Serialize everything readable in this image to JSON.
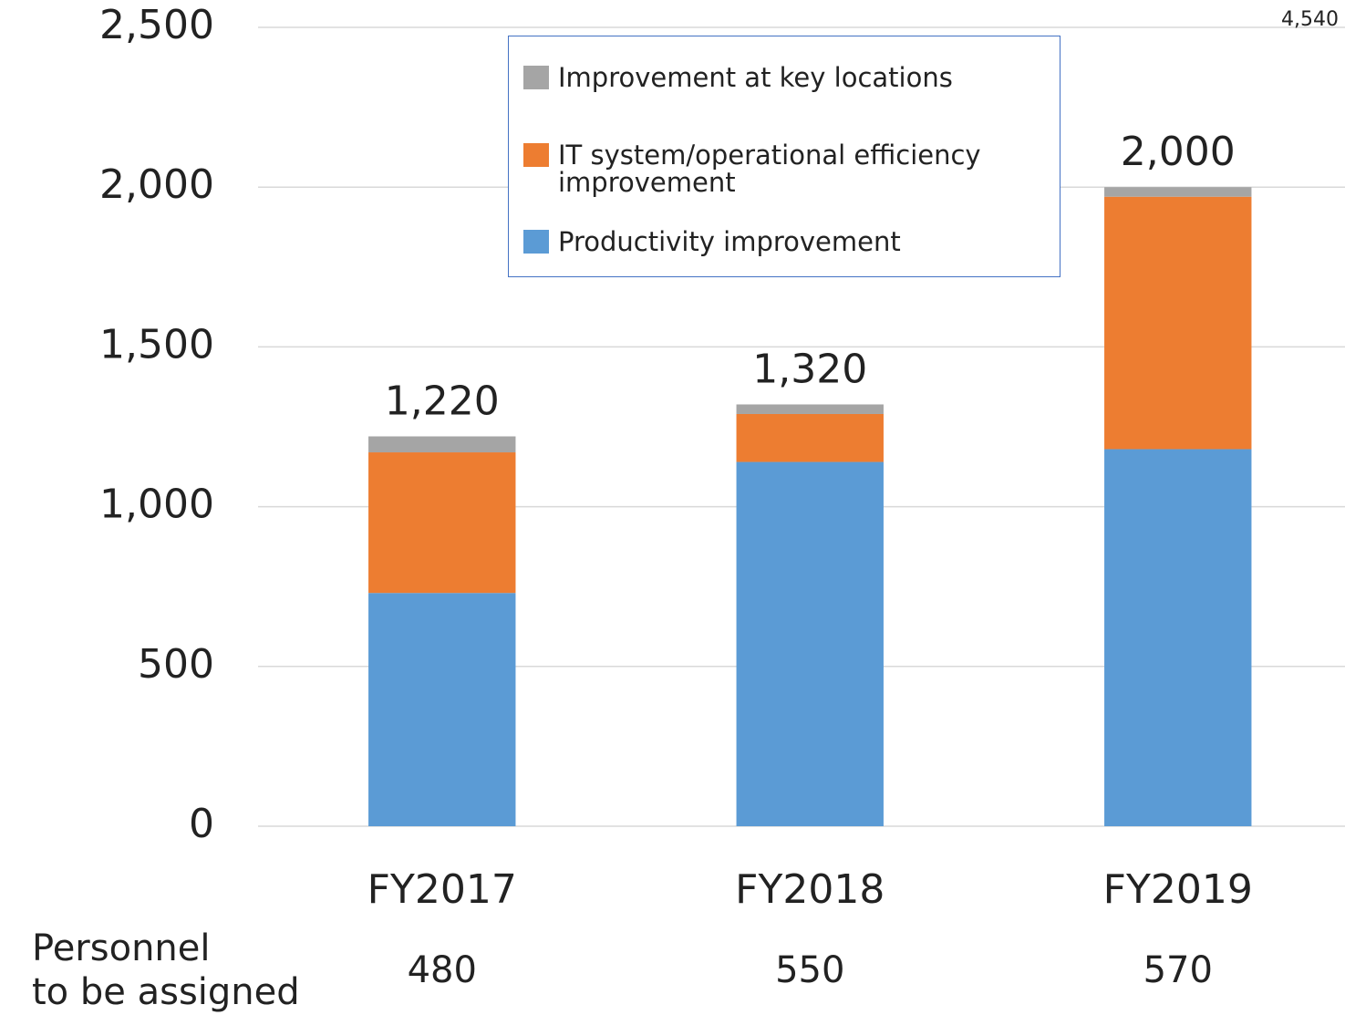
{
  "chart_data": {
    "type": "stacked-bar",
    "categories": [
      "FY2017",
      "FY2018",
      "FY2019"
    ],
    "series": [
      {
        "name": "Productivity improvement",
        "color": "#5b9bd5",
        "values": [
          730,
          1140,
          1180
        ]
      },
      {
        "name": "IT system/operational efficiency improvement",
        "color": "#ed7d31",
        "values": [
          440,
          150,
          790
        ]
      },
      {
        "name": "Improvement at key locations",
        "color": "#a5a5a5",
        "values": [
          50,
          30,
          30
        ]
      }
    ],
    "totals": [
      1220,
      1320,
      2000
    ],
    "total_labels": [
      "1,220",
      "1,320",
      "2,000"
    ],
    "ylim": [
      0,
      2500
    ],
    "yticks": [
      0,
      500,
      {
        "value": 1000,
        "label": "1,000"
      },
      {
        "value": 1500,
        "label": "1,500"
      },
      {
        "value": 2000,
        "label": "2,000"
      },
      {
        "value": 2500,
        "label": "2,500"
      }
    ],
    "grid": true,
    "legend": "top",
    "annotation": "4,540",
    "personnel": {
      "label": [
        "Personnel",
        "to be  assigned"
      ],
      "values": [
        480,
        550,
        570
      ]
    }
  }
}
